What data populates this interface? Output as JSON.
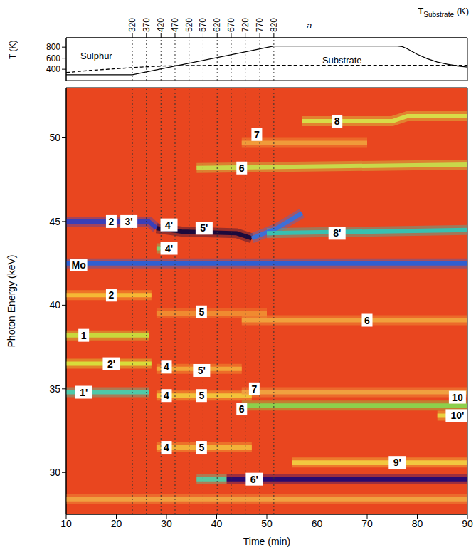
{
  "chart_data": [
    {
      "type": "line",
      "y_label": "T (K)",
      "xlim": [
        10,
        90
      ],
      "ylim": [
        195,
        970
      ],
      "yticks": [
        400,
        600,
        800
      ],
      "x2_label": {
        "text": "T",
        "subscript": "Substrate",
        "suffix": "(K)"
      },
      "x2ticks": [
        {
          "value": 23.2,
          "label": "320"
        },
        {
          "value": 26.0,
          "label": "370"
        },
        {
          "value": 28.9,
          "label": "420"
        },
        {
          "value": 31.7,
          "label": "470"
        },
        {
          "value": 34.5,
          "label": "520"
        },
        {
          "value": 37.3,
          "label": "570"
        },
        {
          "value": 40.1,
          "label": "620"
        },
        {
          "value": 42.9,
          "label": "670"
        },
        {
          "value": 45.7,
          "label": "720"
        },
        {
          "value": 48.6,
          "label": "770"
        },
        {
          "value": 51.4,
          "label": "820"
        }
      ],
      "series": [
        {
          "name": "Sulphur",
          "color": "#000000",
          "line_style": "dashed",
          "label_position": [
            16,
            640
          ],
          "x": [
            10,
            15,
            20,
            25,
            30,
            35,
            40,
            50,
            60,
            70,
            80,
            90
          ],
          "values": [
            340,
            380,
            410,
            440,
            460,
            468,
            470,
            470,
            470,
            470,
            470,
            470
          ]
        },
        {
          "name": "Substrate",
          "color": "#000000",
          "line_style": "solid",
          "label_position": [
            65,
            560
          ],
          "x": [
            10,
            23.2,
            51.4,
            76,
            77,
            78,
            80,
            82,
            84,
            86,
            88,
            90
          ],
          "values": [
            300,
            300,
            820,
            820,
            810,
            770,
            670,
            590,
            530,
            490,
            460,
            440
          ]
        }
      ],
      "annotations": [
        {
          "text": "a",
          "x": 58.5
        }
      ]
    },
    {
      "type": "heatmap",
      "x_label": "Time (min)",
      "y_label": "Photon Energy (keV)",
      "color": "#e9461f",
      "xlim": [
        10,
        90
      ],
      "xticks": [
        10,
        20,
        30,
        40,
        50,
        60,
        70,
        80,
        90
      ],
      "ylim": [
        27.5,
        53
      ],
      "yticks": [
        30,
        35,
        40,
        45,
        50
      ],
      "series": [
        {
          "color": "#f0a040",
          "x": [
            10,
            90
          ],
          "values": [
            28.4,
            28.4
          ]
        },
        {
          "color": "#3a3fb8",
          "x": [
            10,
            26.5,
            28
          ],
          "values": [
            45,
            45,
            44.6
          ]
        },
        {
          "color": "#1c0a3c",
          "x": [
            28,
            33,
            44,
            47
          ],
          "values": [
            44.6,
            44.4,
            44.3,
            44.0
          ]
        },
        {
          "color": "#3d6fd6",
          "x": [
            47,
            52,
            57
          ],
          "values": [
            44.0,
            44.6,
            45.5
          ]
        },
        {
          "color": "#7fd070",
          "x": [
            28,
            31
          ],
          "values": [
            43.4,
            43.4
          ]
        },
        {
          "color": "#38c0b0",
          "x": [
            50,
            90
          ],
          "values": [
            44.3,
            44.5
          ]
        },
        {
          "color": "#2f5fd0",
          "x": [
            10,
            90
          ],
          "values": [
            42.5,
            42.5
          ]
        },
        {
          "color": "#f5b935",
          "x": [
            10,
            27
          ],
          "values": [
            40.6,
            40.6
          ]
        },
        {
          "color": "#c8d83c",
          "x": [
            10,
            26.5
          ],
          "values": [
            38.2,
            38.2
          ]
        },
        {
          "color": "#d8dc3a",
          "x": [
            10,
            27
          ],
          "values": [
            36.5,
            36.5
          ]
        },
        {
          "color": "#4fc8a8",
          "x": [
            10,
            26.5
          ],
          "values": [
            34.8,
            34.8
          ]
        },
        {
          "color": "#f2a638",
          "x": [
            28,
            45
          ],
          "values": [
            36.2,
            36.2
          ]
        },
        {
          "color": "#f2c23a",
          "x": [
            28,
            47
          ],
          "values": [
            34.6,
            34.6
          ]
        },
        {
          "color": "#f2b23a",
          "x": [
            28,
            47
          ],
          "values": [
            31.5,
            31.5
          ]
        },
        {
          "color": "#f08a30",
          "x": [
            28,
            50
          ],
          "values": [
            39.5,
            39.5
          ]
        },
        {
          "color": "#58c8a0",
          "x": [
            36,
            42
          ],
          "values": [
            29.6,
            29.6
          ]
        },
        {
          "color": "#2a0a6e",
          "x": [
            42,
            90
          ],
          "values": [
            29.6,
            29.6
          ]
        },
        {
          "color": "#f2c840",
          "x": [
            55,
            90
          ],
          "values": [
            30.6,
            30.6
          ]
        },
        {
          "color": "#8cd04c",
          "x": [
            45,
            90
          ],
          "values": [
            34.0,
            34.0
          ]
        },
        {
          "color": "#e8d040",
          "x": [
            84,
            90
          ],
          "values": [
            33.4,
            33.4
          ]
        },
        {
          "color": "#f0a040",
          "x": [
            45,
            90
          ],
          "values": [
            34.8,
            34.8
          ]
        },
        {
          "color": "#c8d84a",
          "x": [
            36,
            90
          ],
          "values": [
            48.2,
            48.4
          ]
        },
        {
          "color": "#f09a3a",
          "x": [
            45,
            70
          ],
          "values": [
            49.7,
            49.7
          ]
        },
        {
          "color": "#d8dc48",
          "x": [
            57,
            75,
            78,
            90
          ],
          "values": [
            51,
            51,
            51.3,
            51.3
          ]
        },
        {
          "color": "#f0a03c",
          "x": [
            45,
            90
          ],
          "values": [
            39.1,
            39.1
          ]
        }
      ],
      "annotations": [
        {
          "text": "2",
          "x": 19,
          "y": 45
        },
        {
          "text": "3'",
          "x": 22.5,
          "y": 45
        },
        {
          "text": "4'",
          "x": 30.5,
          "y": 44.8
        },
        {
          "text": "4'",
          "x": 30.5,
          "y": 43.4
        },
        {
          "text": "5'",
          "x": 37.5,
          "y": 44.6
        },
        {
          "text": "8'",
          "x": 64,
          "y": 44.3
        },
        {
          "text": "Mo",
          "x": 12.5,
          "y": 42.4
        },
        {
          "text": "2",
          "x": 19,
          "y": 40.6
        },
        {
          "text": "5",
          "x": 37,
          "y": 39.6
        },
        {
          "text": "6",
          "x": 70,
          "y": 39.1
        },
        {
          "text": "1",
          "x": 13.5,
          "y": 38.2
        },
        {
          "text": "2'",
          "x": 19,
          "y": 36.5
        },
        {
          "text": "4",
          "x": 30,
          "y": 36.3
        },
        {
          "text": "5'",
          "x": 37,
          "y": 36.1
        },
        {
          "text": "1'",
          "x": 13.5,
          "y": 34.8
        },
        {
          "text": "4",
          "x": 30,
          "y": 34.6
        },
        {
          "text": "5",
          "x": 37,
          "y": 34.6
        },
        {
          "text": "7",
          "x": 47.5,
          "y": 35.0
        },
        {
          "text": "6",
          "x": 45,
          "y": 33.8
        },
        {
          "text": "10",
          "x": 88,
          "y": 34.5
        },
        {
          "text": "10'",
          "x": 88,
          "y": 33.4
        },
        {
          "text": "4",
          "x": 30,
          "y": 31.5
        },
        {
          "text": "5",
          "x": 37,
          "y": 31.5
        },
        {
          "text": "6'",
          "x": 47.5,
          "y": 29.6
        },
        {
          "text": "9'",
          "x": 76,
          "y": 30.6
        },
        {
          "text": "8",
          "x": 64,
          "y": 51
        },
        {
          "text": "7",
          "x": 48,
          "y": 50.2
        },
        {
          "text": "6",
          "x": 45,
          "y": 48.2
        }
      ]
    }
  ]
}
